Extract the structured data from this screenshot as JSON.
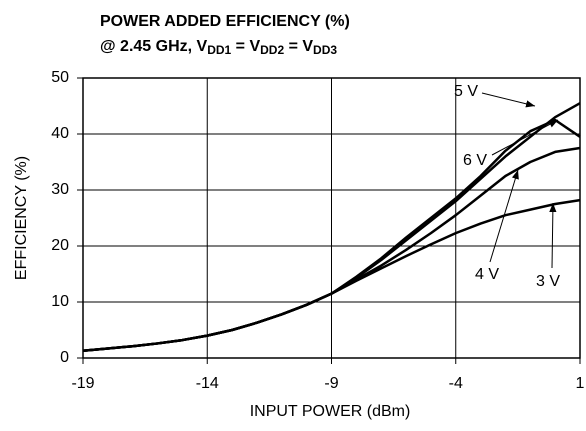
{
  "chart_data": {
    "type": "line",
    "title": "POWER ADDED EFFICIENCY (%)",
    "subtitle": [
      "@ 2.45 GHz, V",
      "DD1",
      " = V",
      "DD2",
      " = V",
      "DD3"
    ],
    "xlabel": "INPUT POWER (dBm)",
    "ylabel": "EFFICIENCY (%)",
    "x": [
      -19,
      -18,
      -17,
      -16,
      -15,
      -14,
      -13,
      -12,
      -11,
      -10,
      -9,
      -8,
      -7,
      -6,
      -5,
      -4,
      -3,
      -2,
      -1,
      0,
      1
    ],
    "series": [
      {
        "name": "3 V",
        "color": "#000000",
        "values": [
          1.3,
          1.7,
          2.1,
          2.6,
          3.2,
          4.0,
          5.0,
          6.3,
          7.8,
          9.5,
          11.5,
          13.8,
          16.0,
          18.2,
          20.3,
          22.3,
          24.0,
          25.5,
          26.5,
          27.5,
          28.2
        ]
      },
      {
        "name": "4 V",
        "color": "#000000",
        "values": [
          1.3,
          1.7,
          2.1,
          2.6,
          3.2,
          4.0,
          5.0,
          6.3,
          7.8,
          9.5,
          11.5,
          14.0,
          16.5,
          19.3,
          22.3,
          25.5,
          29.0,
          32.5,
          35.0,
          36.8,
          37.5
        ]
      },
      {
        "name": "5 V",
        "color": "#000000",
        "values": [
          1.3,
          1.7,
          2.1,
          2.6,
          3.2,
          4.0,
          5.0,
          6.3,
          7.8,
          9.5,
          11.5,
          14.3,
          17.5,
          21.0,
          24.5,
          28.0,
          32.0,
          36.0,
          39.5,
          43.0,
          45.5
        ]
      },
      {
        "name": "6 V",
        "color": "#000000",
        "values": [
          1.3,
          1.7,
          2.1,
          2.6,
          3.2,
          4.0,
          5.0,
          6.3,
          7.8,
          9.5,
          11.5,
          14.5,
          17.8,
          21.5,
          25.0,
          28.5,
          32.5,
          37.0,
          40.5,
          42.5,
          39.5
        ]
      }
    ],
    "xlim": [
      -19,
      1
    ],
    "xticks": [
      -19,
      -14,
      -9,
      -4,
      1
    ],
    "ylim": [
      0,
      50
    ],
    "yticks": [
      0,
      10,
      20,
      30,
      40,
      50
    ],
    "grid": true
  }
}
